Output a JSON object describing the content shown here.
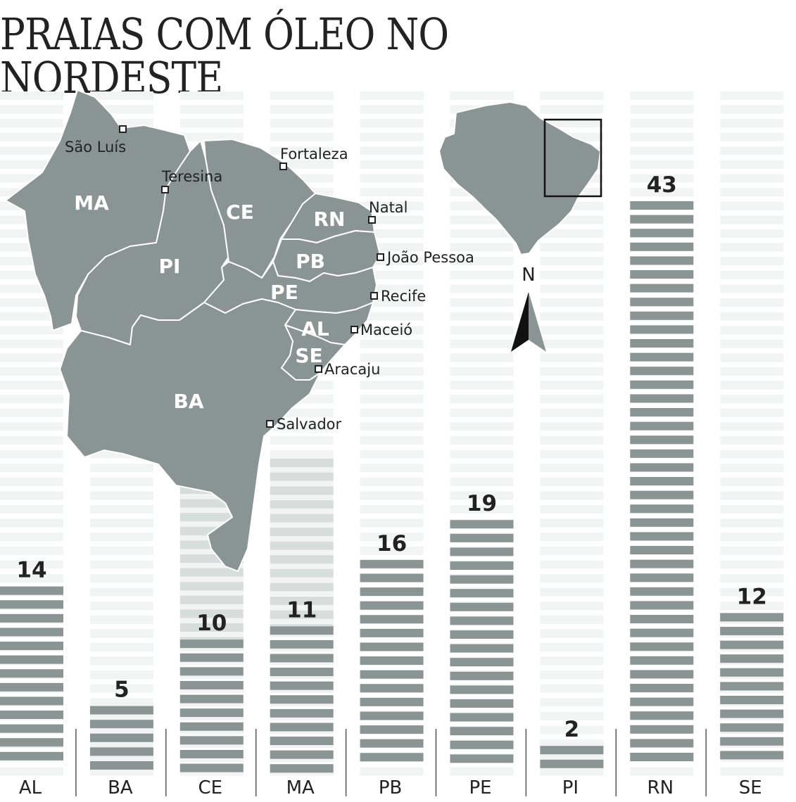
{
  "title": "PRAIAS COM ÓLEO NO NORDESTE",
  "chart_data": {
    "type": "bar",
    "title": "PRAIAS COM ÓLEO NO NORDESTE",
    "categories": [
      "AL",
      "BA",
      "CE",
      "MA",
      "PB",
      "PE",
      "PI",
      "RN",
      "SE"
    ],
    "values": [
      14,
      5,
      10,
      11,
      16,
      19,
      2,
      43,
      12
    ],
    "xlabel": "",
    "ylabel": "",
    "ylim": [
      0,
      43
    ]
  },
  "map": {
    "states": [
      {
        "id": "MA",
        "label": "MA"
      },
      {
        "id": "PI",
        "label": "PI"
      },
      {
        "id": "CE",
        "label": "CE"
      },
      {
        "id": "RN",
        "label": "RN"
      },
      {
        "id": "PB",
        "label": "PB"
      },
      {
        "id": "PE",
        "label": "PE"
      },
      {
        "id": "AL",
        "label": "AL"
      },
      {
        "id": "SE",
        "label": "SE"
      },
      {
        "id": "BA",
        "label": "BA"
      }
    ],
    "cities": [
      {
        "id": "sao-luis",
        "label": "São Luís"
      },
      {
        "id": "teresina",
        "label": "Teresina"
      },
      {
        "id": "fortaleza",
        "label": "Fortaleza"
      },
      {
        "id": "natal",
        "label": "Natal"
      },
      {
        "id": "joao-pessoa",
        "label": "João Pessoa"
      },
      {
        "id": "recife",
        "label": "Recife"
      },
      {
        "id": "maceio",
        "label": "Maceió"
      },
      {
        "id": "aracaju",
        "label": "Aracaju"
      },
      {
        "id": "salvador",
        "label": "Salvador"
      }
    ],
    "north_label": "N"
  },
  "colors": {
    "bar": "#8a9593",
    "bar_light": "#d6dddb",
    "track": "#f2f3f3",
    "map": "#8a9593",
    "text": "#222222"
  }
}
